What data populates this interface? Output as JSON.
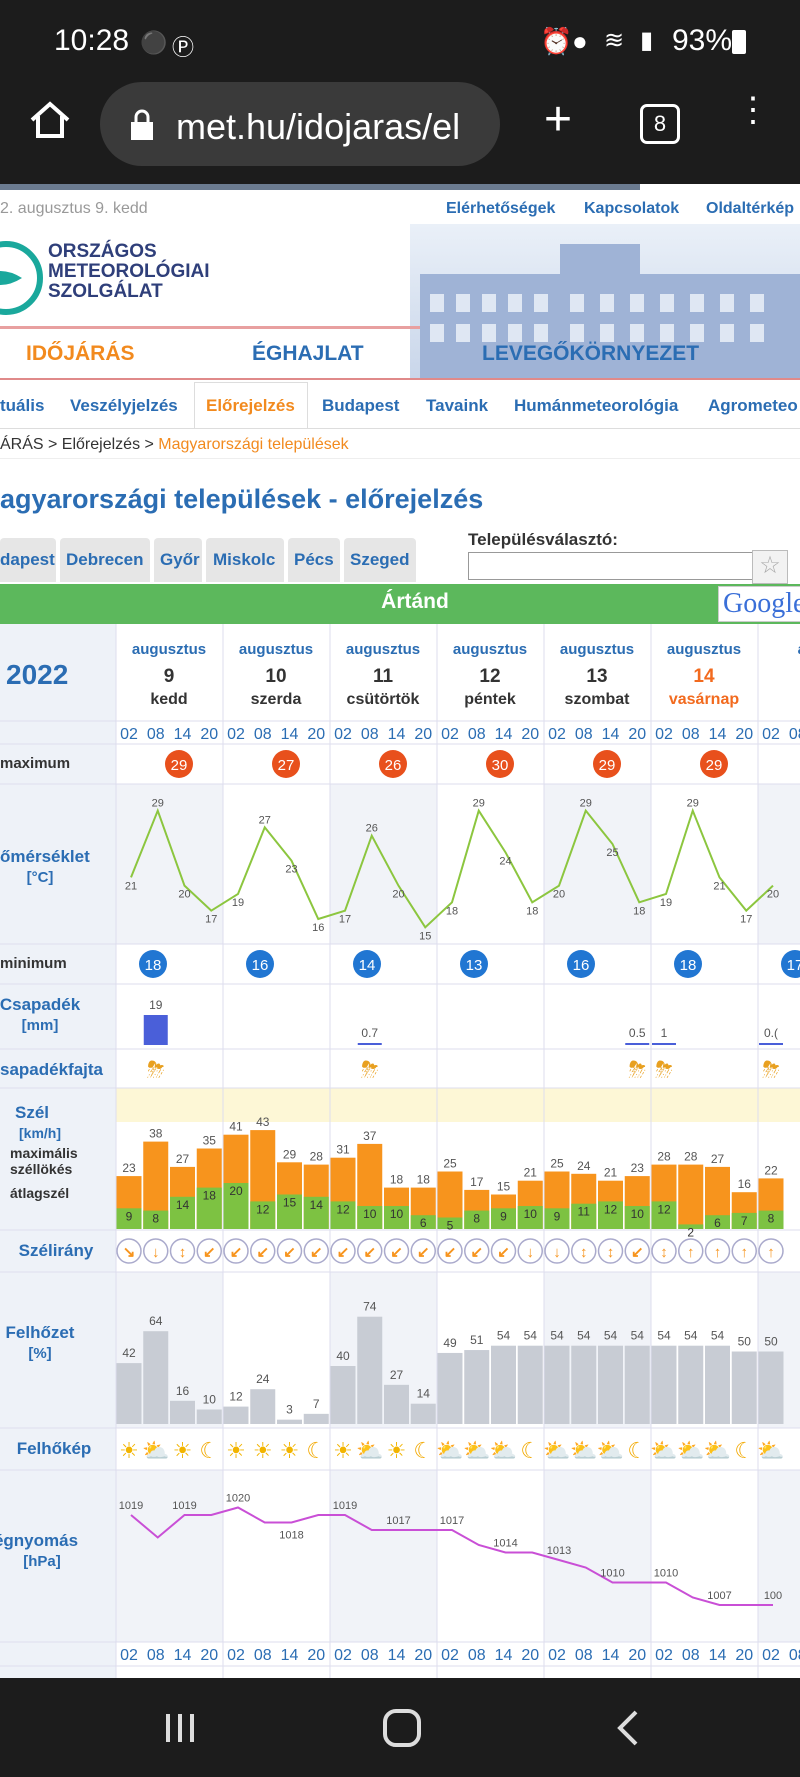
{
  "status": {
    "time": "10:28",
    "battery": "93%"
  },
  "browser": {
    "url": "met.hu/idojaras/el",
    "tab_count": "8"
  },
  "header": {
    "date": "2. augusztus 9. kedd",
    "links": [
      "Elérhetőségek",
      "Kapcsolatok",
      "Oldaltérkép"
    ],
    "logo_lines": [
      "ORSZÁGOS",
      "METEOROLÓGIAI",
      "SZOLGÁLAT"
    ]
  },
  "main_nav": [
    "IDŐJÁRÁS",
    "ÉGHAJLAT",
    "LEVEGŐKÖRNYEZET"
  ],
  "sub_nav": [
    "tuális",
    "Veszélyjelzés",
    "Előrejelzés",
    "Budapest",
    "Tavaink",
    "Humánmeteorológia",
    "Agrometeo"
  ],
  "breadcrumb": {
    "part1": "ÁRÁS > Előrejelzés > ",
    "current": "Magyarországi települések"
  },
  "page_title": "agyarországi települések - előrejelzés",
  "city_tabs": [
    "dapest",
    "Debrecen",
    "Győr",
    "Miskolc",
    "Pécs",
    "Szeged"
  ],
  "selector": {
    "label": "Településválasztó:",
    "value": ""
  },
  "location": "Ártánd",
  "google": "Google",
  "year": "2022",
  "days": [
    {
      "month": "augusztus",
      "day": "9",
      "weekday": "kedd",
      "weekend": false
    },
    {
      "month": "augusztus",
      "day": "10",
      "weekday": "szerda",
      "weekend": false
    },
    {
      "month": "augusztus",
      "day": "11",
      "weekday": "csütörtök",
      "weekend": false
    },
    {
      "month": "augusztus",
      "day": "12",
      "weekday": "péntek",
      "weekend": false
    },
    {
      "month": "augusztus",
      "day": "13",
      "weekday": "szombat",
      "weekend": false
    },
    {
      "month": "augusztus",
      "day": "14",
      "weekday": "vasárnap",
      "weekend": true
    },
    {
      "month": "aug",
      "day": "",
      "weekday": "h",
      "weekend": false
    }
  ],
  "hours": [
    "02",
    "08",
    "14",
    "20"
  ],
  "row_labels": {
    "maximum": "maximum",
    "temp": "őmérséklet",
    "temp_unit": "[°C]",
    "minimum": "minimum",
    "precip": "Csapadék",
    "precip_unit": "[mm]",
    "precip_type": "sapadékfajta",
    "wind": "Szél",
    "wind_unit": "[km/h]",
    "wind_gust": "maximális",
    "wind_gust2": "széllökés",
    "wind_avg": "átlagszél",
    "wind_dir": "Szélirány",
    "cloud": "Felhőzet",
    "cloud_unit": "[%]",
    "cloud_img": "Felhőkép",
    "pressure": "égnyomás",
    "pressure_unit": "[hPa]"
  },
  "maximum": [
    "29",
    "27",
    "26",
    "30",
    "29",
    "29"
  ],
  "minimum": [
    "18",
    "16",
    "14",
    "13",
    "16",
    "18",
    "17"
  ],
  "temps": [
    21,
    29,
    20,
    17,
    19,
    27,
    23,
    16,
    17,
    26,
    20,
    15,
    18,
    29,
    24,
    18,
    20,
    29,
    25,
    18,
    19,
    29,
    21,
    17,
    20
  ],
  "precip": {
    "day9_14": "19",
    "day11_14": "0.7",
    "day14_08": "0.5",
    "day14_14": "1",
    "day15": "0.("
  },
  "wind_gust": [
    23,
    38,
    27,
    35,
    41,
    43,
    29,
    28,
    31,
    37,
    18,
    18,
    25,
    17,
    15,
    21,
    25,
    24,
    21,
    23,
    28,
    28,
    27,
    16,
    22
  ],
  "wind_avg": [
    9,
    8,
    14,
    18,
    20,
    12,
    15,
    14,
    12,
    10,
    10,
    6,
    5,
    8,
    9,
    10,
    9,
    11,
    12,
    10,
    12,
    2,
    6,
    7,
    8
  ],
  "wind_dir": [
    "↘",
    "↓",
    "↕",
    "↙",
    "↙",
    "↙",
    "↙",
    "↙",
    "↙",
    "↙",
    "↙",
    "↙",
    "↙",
    "↙",
    "↙",
    "↓",
    "↓",
    "↕",
    "↕",
    "↙",
    "↕",
    "↑",
    "↑",
    "↑",
    "↑"
  ],
  "clouds": [
    42,
    64,
    16,
    10,
    12,
    24,
    3,
    7,
    40,
    74,
    27,
    14,
    49,
    51,
    54,
    54,
    54,
    54,
    54,
    54,
    54,
    54,
    54,
    50,
    50
  ],
  "pressure": [
    1019,
    1016,
    1019,
    1019,
    1020,
    1018,
    1018,
    1019,
    1019,
    1017,
    1017,
    1017,
    1017,
    1015,
    1014,
    1014,
    1013,
    1012,
    1010,
    1010,
    1010,
    1008,
    1007,
    1007,
    1007
  ],
  "pressure_labels": [
    [
      "1019",
      0
    ],
    [
      "1019",
      2
    ],
    [
      "1020",
      4
    ],
    [
      "1018",
      6
    ],
    [
      "1019",
      8
    ],
    [
      "1017",
      10
    ],
    [
      "1017",
      12
    ],
    [
      "1014",
      14
    ],
    [
      "1013",
      16
    ],
    [
      "1010",
      18
    ],
    [
      "1010",
      20
    ],
    [
      "1007",
      22
    ],
    [
      "100",
      24
    ]
  ],
  "colors": {
    "accent": "#2b6db3",
    "orange": "#f7941d",
    "green": "#7dc242",
    "maxcircle": "#e8501c",
    "mincircle": "#2176d2",
    "temp_line": "#8cc63f",
    "pressure_line": "#c94fd6",
    "location_bar": "#5cb85c"
  }
}
